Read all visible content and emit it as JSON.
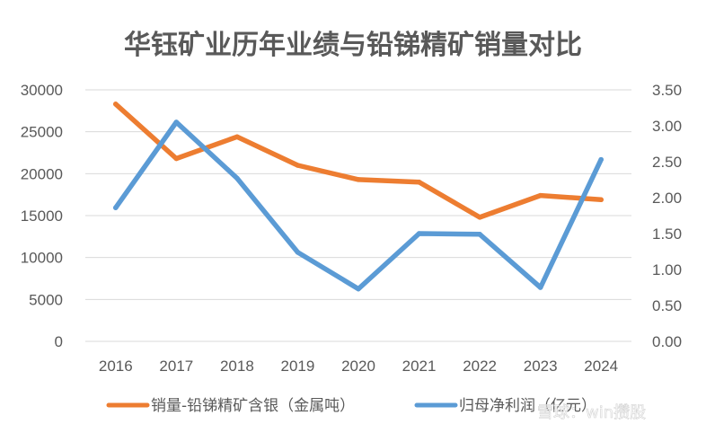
{
  "chart_data": {
    "type": "line",
    "title": "华钰矿业历年业绩与铅锑精矿销量对比",
    "categories": [
      "2016",
      "2017",
      "2018",
      "2019",
      "2020",
      "2021",
      "2022",
      "2023",
      "2024"
    ],
    "y_left": {
      "min": 0,
      "max": 30000,
      "step": 5000,
      "ticks": [
        "0",
        "5000",
        "10000",
        "15000",
        "20000",
        "25000",
        "30000"
      ]
    },
    "y_right": {
      "min": 0,
      "max": 3.5,
      "step": 0.5,
      "ticks": [
        "0.00",
        "0.50",
        "1.00",
        "1.50",
        "2.00",
        "2.50",
        "3.00",
        "3.50"
      ]
    },
    "grid": true,
    "legend_position": "bottom",
    "series": [
      {
        "name": "销量-铅锑精矿含银（金属吨）",
        "axis": "left",
        "color": "#ED7D31",
        "values": [
          28300,
          21800,
          24400,
          21000,
          19300,
          19000,
          14800,
          17400,
          16900
        ]
      },
      {
        "name": "归母净利润（亿元）",
        "axis": "right",
        "color": "#5B9BD5",
        "values": [
          1.86,
          3.05,
          2.27,
          1.24,
          0.73,
          1.5,
          1.49,
          0.75,
          2.53
        ]
      }
    ]
  },
  "watermark": "雪球：win攒股"
}
